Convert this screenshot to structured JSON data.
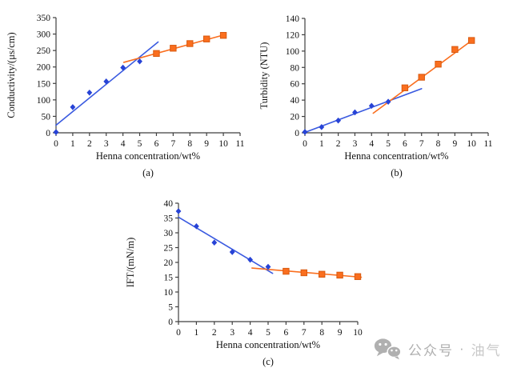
{
  "watermark": {
    "text_primary": "公众号",
    "separator": " · ",
    "text_secondary": "油气",
    "color_primary": "#b0b0b0",
    "color_secondary": "#c9c9c9"
  },
  "colors": {
    "series_blue_marker": "#2743d6",
    "series_blue_line": "#3a5ae0",
    "series_orange": "#fa6e1e",
    "series_orange_edge": "#d85a10",
    "axis": "#3f3f3f",
    "text": "#111111"
  },
  "chart_data": [
    {
      "id": "a",
      "type": "scatter",
      "caption": "(a)",
      "xlabel": "Henna concentration/wt%",
      "ylabel": "Conductivity/(μs/cm)",
      "xlim": [
        0,
        11
      ],
      "xtick_step": 1,
      "ylim": [
        0,
        350
      ],
      "ytick_step": 50,
      "grid": false,
      "legend": "none",
      "series": [
        {
          "name": "conductivity-low-wt",
          "marker": "diamond",
          "color": "#2743d6",
          "points": [
            [
              0,
              2
            ],
            [
              1,
              78
            ],
            [
              2,
              122
            ],
            [
              3,
              156
            ],
            [
              4,
              198
            ],
            [
              5,
              217
            ]
          ]
        },
        {
          "name": "conductivity-high-wt",
          "marker": "square",
          "color": "#fa6e1e",
          "edge": "#d85a10",
          "points": [
            [
              6,
              241
            ],
            [
              7,
              257
            ],
            [
              8,
              271
            ],
            [
              9,
              285
            ],
            [
              10,
              296
            ]
          ]
        }
      ],
      "trendlines": [
        {
          "name": "linear-fit-low",
          "color": "#3a5ae0",
          "x1": 0,
          "y1": 23,
          "x2": 6.1,
          "y2": 276
        },
        {
          "name": "linear-fit-high",
          "color": "#fa6e1e",
          "x1": 4.05,
          "y1": 214,
          "x2": 10.15,
          "y2": 299
        }
      ]
    },
    {
      "id": "b",
      "type": "scatter",
      "caption": "(b)",
      "xlabel": "Henna concentration/wt%",
      "ylabel": "Turbidity (NTU)",
      "xlim": [
        0,
        11
      ],
      "xtick_step": 1,
      "ylim": [
        0,
        140
      ],
      "ytick_step": 20,
      "grid": false,
      "legend": "none",
      "series": [
        {
          "name": "turbidity-low-wt",
          "marker": "diamond",
          "color": "#2743d6",
          "points": [
            [
              0,
              1
            ],
            [
              1,
              7
            ],
            [
              2,
              15
            ],
            [
              3,
              25
            ],
            [
              4,
              33
            ],
            [
              5,
              38
            ]
          ]
        },
        {
          "name": "turbidity-high-wt",
          "marker": "square",
          "color": "#fa6e1e",
          "edge": "#d85a10",
          "points": [
            [
              6,
              55
            ],
            [
              7,
              68
            ],
            [
              8,
              84
            ],
            [
              9,
              102
            ],
            [
              10,
              113
            ]
          ]
        }
      ],
      "trendlines": [
        {
          "name": "linear-fit-low",
          "color": "#3a5ae0",
          "x1": 0,
          "y1": 0.5,
          "x2": 7.0,
          "y2": 54
        },
        {
          "name": "linear-fit-high",
          "color": "#fa6e1e",
          "x1": 4.1,
          "y1": 24,
          "x2": 10.15,
          "y2": 115
        }
      ]
    },
    {
      "id": "c",
      "type": "scatter",
      "caption": "(c)",
      "xlabel": "Henna concentration/wt%",
      "ylabel": "IFT/(mN/m)",
      "xlim": [
        0,
        10
      ],
      "xtick_step": 1,
      "ylim": [
        0,
        40
      ],
      "ytick_step": 5,
      "grid": false,
      "legend": "none",
      "series": [
        {
          "name": "ift-low-wt",
          "marker": "diamond",
          "color": "#2743d6",
          "points": [
            [
              0,
              37.3
            ],
            [
              1,
              32.2
            ],
            [
              2,
              26.7
            ],
            [
              3,
              23.5
            ],
            [
              4,
              20.9
            ],
            [
              5,
              18.5
            ]
          ]
        },
        {
          "name": "ift-high-wt",
          "marker": "square",
          "color": "#fa6e1e",
          "edge": "#d85a10",
          "points": [
            [
              6,
              17
            ],
            [
              7,
              16.5
            ],
            [
              8,
              16
            ],
            [
              9,
              15.7
            ],
            [
              10,
              15.2
            ]
          ]
        }
      ],
      "trendlines": [
        {
          "name": "linear-fit-low",
          "color": "#3a5ae0",
          "x1": 0,
          "y1": 35.3,
          "x2": 5.25,
          "y2": 16.3
        },
        {
          "name": "linear-fit-high",
          "color": "#fa6e1e",
          "x1": 4.1,
          "y1": 18.1,
          "x2": 10.2,
          "y2": 15.0
        }
      ]
    }
  ]
}
